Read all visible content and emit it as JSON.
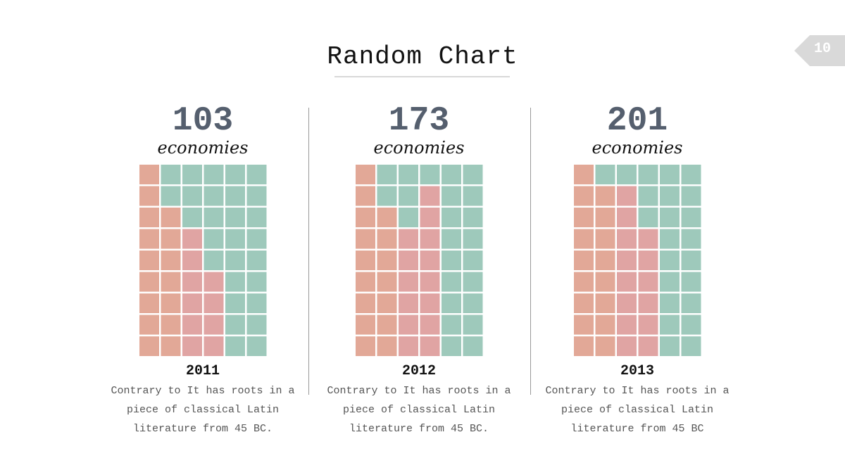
{
  "title": "Random Chart",
  "page_number": "10",
  "colors": {
    "green": "#9ec9bb",
    "salmon": "#e2a897",
    "pink": "#e0a4a3",
    "count": "#555f6e",
    "divider": "#999999"
  },
  "chart_data": {
    "type": "waffle",
    "rows": 9,
    "cols": 6,
    "panels": [
      {
        "count": "103",
        "unit": "economies",
        "year": "2011",
        "desc": "Contrary to It has roots in a piece of classical Latin literature from 45 BC.",
        "column_fill_heights": [
          9,
          7,
          6,
          4,
          0,
          0
        ]
      },
      {
        "count": "173",
        "unit": "economies",
        "year": "2012",
        "desc": "Contrary to It has roots in a piece of classical Latin literature from 45 BC.",
        "column_fill_heights": [
          9,
          7,
          6,
          8,
          0,
          0
        ]
      },
      {
        "count": "201",
        "unit": "economies",
        "year": "2013",
        "desc": "Contrary to It has roots in a piece of classical Latin literature from 45 BC",
        "column_fill_heights": [
          9,
          8,
          8,
          6,
          0,
          0
        ]
      }
    ]
  }
}
